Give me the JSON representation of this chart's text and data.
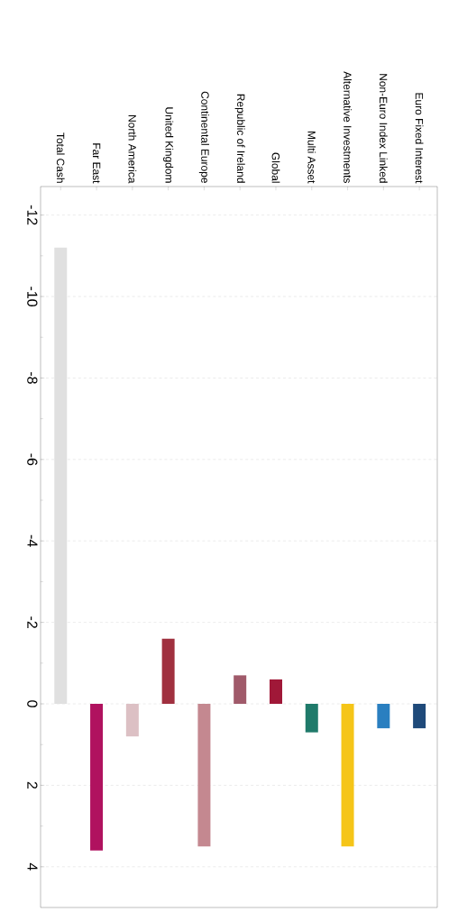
{
  "chart_data": {
    "type": "bar",
    "categories": [
      "Total Cash",
      "Far East",
      "North America",
      "United Kingdom",
      "Continental Europe",
      "Republic of Ireland",
      "Global",
      "Multi Asset",
      "Alternative Investments",
      "Non-Euro Index Linked",
      "Euro Fixed Interest"
    ],
    "values": [
      -11.2,
      3.6,
      0.8,
      -1.6,
      3.5,
      -0.7,
      -0.6,
      0.7,
      3.5,
      0.6,
      0.6
    ],
    "colors": [
      "#e0e0e0",
      "#b0125f",
      "#dcc0c4",
      "#a0303f",
      "#c48890",
      "#a05a6a",
      "#a01838",
      "#1f7a6a",
      "#f5c518",
      "#2a7fc0",
      "#1f4a7a"
    ],
    "ylim": [
      5,
      -12.7
    ],
    "yticks": [
      -12,
      -10,
      -8,
      -6,
      -4,
      -2,
      0,
      2,
      4
    ],
    "grid": "y"
  }
}
